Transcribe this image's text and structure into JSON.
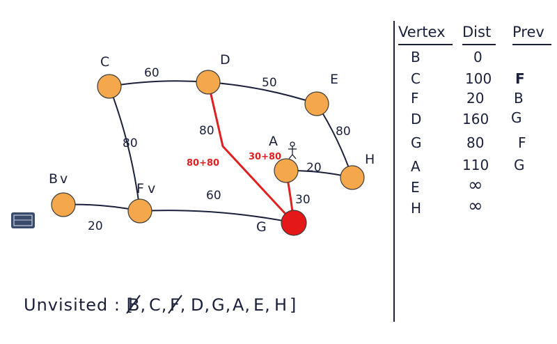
{
  "graph": {
    "vertices": [
      {
        "id": "B",
        "label": "B",
        "check": "v",
        "visited": true
      },
      {
        "id": "C",
        "label": "C",
        "check": "",
        "visited": false
      },
      {
        "id": "F",
        "label": "F",
        "check": "v",
        "visited": true
      },
      {
        "id": "D",
        "label": "D",
        "check": "",
        "visited": false
      },
      {
        "id": "E",
        "label": "E",
        "check": "",
        "visited": false
      },
      {
        "id": "A",
        "label": "A",
        "check": "",
        "visited": false
      },
      {
        "id": "H",
        "label": "H",
        "check": "",
        "visited": false
      },
      {
        "id": "G",
        "label": "G",
        "check": "",
        "visited": false,
        "current": true
      }
    ],
    "edges": [
      {
        "from": "C",
        "to": "D",
        "weight": "60"
      },
      {
        "from": "D",
        "to": "E",
        "weight": "50"
      },
      {
        "from": "C",
        "to": "F",
        "weight": "80"
      },
      {
        "from": "E",
        "to": "H",
        "weight": "80"
      },
      {
        "from": "A",
        "to": "H",
        "weight": "20"
      },
      {
        "from": "B",
        "to": "F",
        "weight": "20"
      },
      {
        "from": "F",
        "to": "G",
        "weight": "60"
      },
      {
        "from": "D",
        "to": "G",
        "weight": "80",
        "highlight": true,
        "note": "80+80"
      },
      {
        "from": "A",
        "to": "G",
        "weight": "30",
        "highlight": true,
        "note": "30+80"
      }
    ],
    "node_color": "#f5a84b",
    "current_color": "#e41818",
    "highlight_color": "#e02020",
    "ink_color": "#1a1f3a"
  },
  "table": {
    "headers": [
      "Vertex",
      "Dist",
      "Prev"
    ],
    "rows": [
      {
        "vertex": "B",
        "dist": "0",
        "prev": ""
      },
      {
        "vertex": "C",
        "dist": "100",
        "prev": "F"
      },
      {
        "vertex": "F",
        "dist": "20",
        "prev": "B"
      },
      {
        "vertex": "D",
        "dist": "160",
        "prev": "G"
      },
      {
        "vertex": "G",
        "dist": "80",
        "prev": "F"
      },
      {
        "vertex": "A",
        "dist": "110",
        "prev": "G"
      },
      {
        "vertex": "E",
        "dist": "∞",
        "prev": ""
      },
      {
        "vertex": "H",
        "dist": "∞",
        "prev": ""
      }
    ]
  },
  "unvisited": {
    "prefix": "Unvisited : [",
    "items": [
      {
        "label": "B",
        "crossed": true
      },
      {
        "label": "C",
        "crossed": false
      },
      {
        "label": "F",
        "crossed": true
      },
      {
        "label": "D",
        "crossed": false
      },
      {
        "label": "G",
        "crossed": false
      },
      {
        "label": "A",
        "crossed": false
      },
      {
        "label": "E",
        "crossed": false
      },
      {
        "label": "H",
        "crossed": false
      }
    ],
    "suffix": "]"
  }
}
